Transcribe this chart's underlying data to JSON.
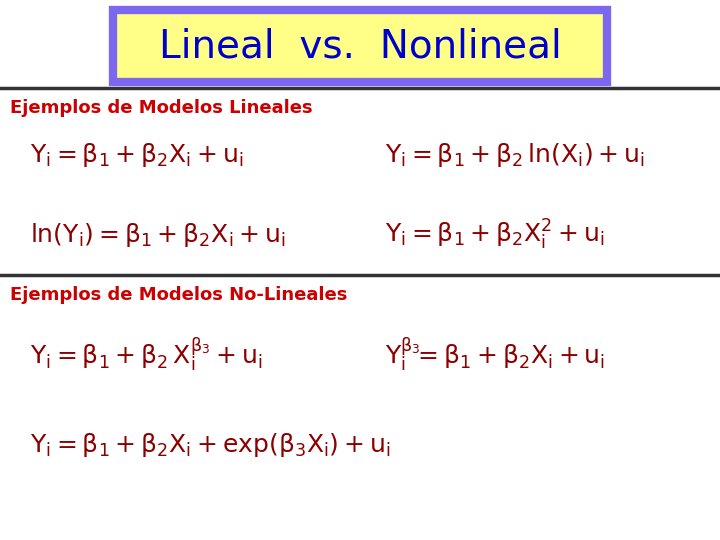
{
  "title": "Lineal  vs.  Nonlineal",
  "title_color": "#0000CC",
  "title_bg": "#FFFF88",
  "title_border": "#7B68EE",
  "section1_label": "Ejemplos de Modelos Lineales",
  "section2_label": "Ejemplos de Modelos No-Lineales",
  "section_color": "#CC0000",
  "formula_color": "#8B0000",
  "bg_color": "#FFFFFF",
  "line_color": "#333333",
  "figsize": [
    7.2,
    5.4
  ],
  "dpi": 100
}
